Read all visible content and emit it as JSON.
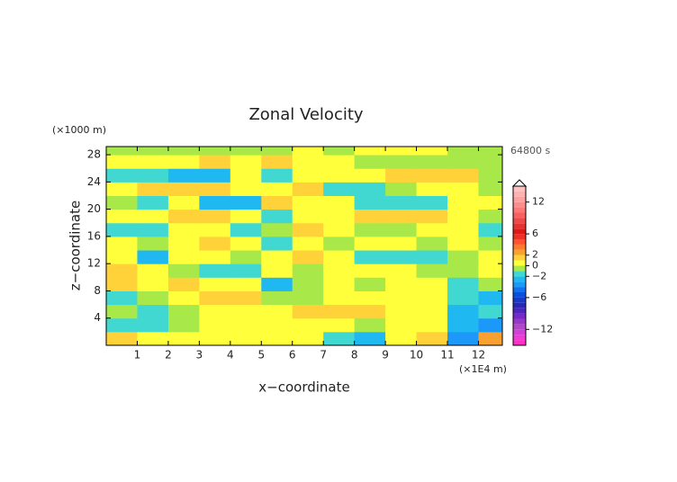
{
  "chart_data": {
    "type": "contour",
    "title": "Zonal Velocity",
    "x_label": "x−coordinate",
    "y_label": "z−coordinate",
    "x_unit": "(×1E4 m)",
    "y_unit": "(×1000 m)",
    "time_label": "64800 s",
    "xlim": [
      0,
      12.77
    ],
    "ylim": [
      0,
      29.2
    ],
    "xticks": [
      1,
      2,
      3,
      4,
      5,
      6,
      7,
      8,
      9,
      10,
      11,
      12
    ],
    "yticks": [
      4,
      8,
      12,
      16,
      20,
      24,
      28
    ],
    "x": [
      0.5,
      1.5,
      2.5,
      3.5,
      4.5,
      5.5,
      6.5,
      7.5,
      8.5,
      9.5,
      10.5,
      11.5,
      12.5
    ],
    "y": [
      1,
      3,
      5,
      7,
      9,
      11,
      13,
      15,
      17,
      19,
      21,
      23,
      25,
      27,
      29
    ],
    "z": [
      [
        1.5,
        0.5,
        0.5,
        0.5,
        0.5,
        0.5,
        0.5,
        -1.5,
        -2.5,
        0.5,
        1.5,
        -3.5,
        2.5
      ],
      [
        -1.5,
        -1.5,
        -0.5,
        0.5,
        0.5,
        0.5,
        0.5,
        0.5,
        -0.5,
        0.5,
        0.5,
        -2.5,
        -3.5
      ],
      [
        -0.5,
        -1.5,
        -0.5,
        0.5,
        0.5,
        0.5,
        1.5,
        1.5,
        1.5,
        0.5,
        0.5,
        -2.5,
        -1.5
      ],
      [
        -1.5,
        -0.5,
        0.5,
        1.5,
        1.5,
        -0.5,
        -0.5,
        0.5,
        0.5,
        0.5,
        0.5,
        -1.5,
        -2.5
      ],
      [
        1.5,
        0.5,
        1.5,
        0.5,
        0.5,
        -2.5,
        -0.5,
        0.5,
        -0.5,
        0.5,
        0.5,
        -1.5,
        -0.5
      ],
      [
        1.5,
        0.5,
        -0.5,
        -1.5,
        -1.5,
        0.5,
        -0.5,
        0.5,
        0.5,
        0.5,
        -0.5,
        -0.5,
        0.5
      ],
      [
        0.5,
        -2.5,
        0.5,
        0.5,
        -0.5,
        0.5,
        1.5,
        0.5,
        -1.5,
        -1.5,
        -1.5,
        -0.5,
        0.5
      ],
      [
        0.5,
        -0.5,
        0.5,
        1.5,
        0.5,
        -1.5,
        0.5,
        -0.5,
        0.5,
        0.5,
        -0.5,
        0.5,
        -0.5
      ],
      [
        -1.5,
        -1.5,
        0.5,
        0.5,
        -1.5,
        -0.5,
        1.5,
        0.5,
        -0.5,
        -0.5,
        0.5,
        0.5,
        -1.5
      ],
      [
        0.5,
        0.5,
        1.5,
        1.5,
        0.5,
        -1.5,
        0.5,
        0.5,
        1.5,
        1.5,
        1.5,
        0.5,
        -0.5
      ],
      [
        -0.5,
        -1.5,
        0.5,
        -2.5,
        -2.5,
        1.5,
        0.5,
        0.5,
        -1.5,
        -1.5,
        -1.5,
        0.5,
        0.5
      ],
      [
        0.5,
        1.5,
        1.5,
        1.5,
        0.5,
        0.5,
        1.5,
        -1.5,
        -1.5,
        -0.5,
        0.5,
        0.5,
        -0.5
      ],
      [
        -1.5,
        -1.5,
        -2.5,
        -2.5,
        0.5,
        -1.5,
        0.5,
        0.5,
        0.5,
        1.5,
        1.5,
        1.5,
        -0.5
      ],
      [
        0.5,
        0.5,
        0.5,
        1.5,
        0.5,
        1.5,
        0.5,
        0.5,
        -0.5,
        -0.5,
        -0.5,
        -0.5,
        -0.5
      ],
      [
        -0.5,
        -0.5,
        -0.5,
        -0.5,
        -0.5,
        -0.5,
        0.5,
        -0.5,
        0.5,
        0.5,
        0.5,
        -0.5,
        -0.5
      ]
    ],
    "levels": [
      -15,
      -14,
      -13,
      -12,
      -11,
      -10,
      -9,
      -8,
      -7,
      -6,
      -5,
      -4,
      -3,
      -2,
      -1,
      0,
      1,
      2,
      3,
      4,
      5,
      6,
      7,
      8,
      9,
      10,
      11,
      12,
      13,
      14,
      15
    ],
    "colors": [
      "#ff2fc8",
      "#f03ad8",
      "#d040d8",
      "#b048cc",
      "#9838c8",
      "#7828c8",
      "#4c24c4",
      "#2c24b8",
      "#1838c8",
      "#0a4ee0",
      "#1070f0",
      "#1c98f8",
      "#20b8f0",
      "#40d8d0",
      "#a8e848",
      "#ffff3c",
      "#ffd23a",
      "#f8a030",
      "#ff7830",
      "#ff5030",
      "#f03028",
      "#e01818",
      "#e83030",
      "#f04848",
      "#f86060",
      "#ff7878",
      "#ff8c8c",
      "#ffa0a0",
      "#ffb0b0",
      "#ffc0c0"
    ],
    "extend_color": "#ffffff",
    "colorbar_ticks": [
      {
        "value": -12,
        "label": "−12"
      },
      {
        "value": -6,
        "label": "−6"
      },
      {
        "value": -2,
        "label": "−2"
      },
      0,
      2,
      6,
      12
    ]
  }
}
